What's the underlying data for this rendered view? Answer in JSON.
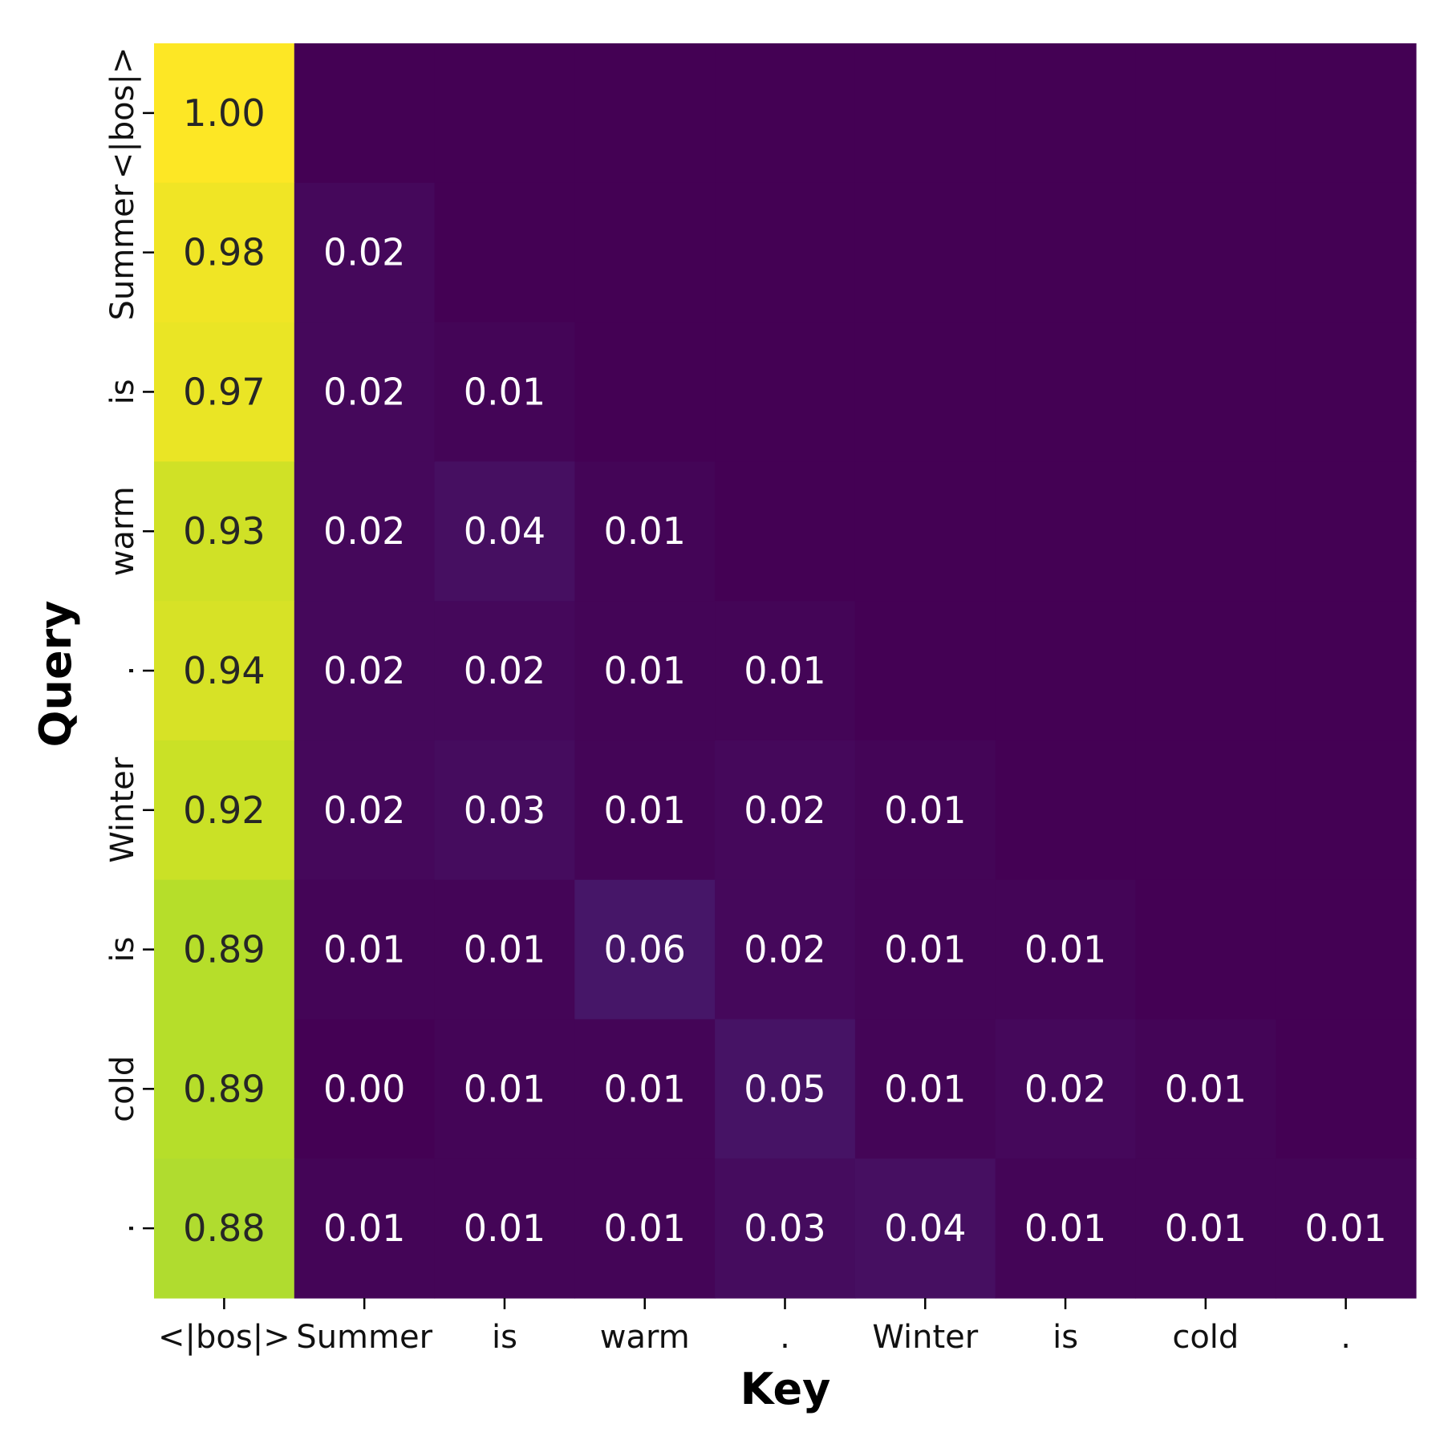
{
  "chart_data": {
    "type": "heatmap",
    "title": "",
    "xlabel": "Key",
    "ylabel": "Query",
    "x_categories": [
      "<|bos|>",
      "Summer",
      "is",
      "warm",
      ".",
      "Winter",
      "is",
      "cold",
      "."
    ],
    "y_categories": [
      "<|bos|>",
      "Summer",
      "is",
      "warm",
      ".",
      "Winter",
      "is",
      "cold",
      "."
    ],
    "colormap": "viridis",
    "value_range": [
      0,
      1
    ],
    "colorbar": false,
    "masked_upper_triangle": true,
    "values": [
      [
        1.0,
        null,
        null,
        null,
        null,
        null,
        null,
        null,
        null
      ],
      [
        0.98,
        0.02,
        null,
        null,
        null,
        null,
        null,
        null,
        null
      ],
      [
        0.97,
        0.02,
        0.01,
        null,
        null,
        null,
        null,
        null,
        null
      ],
      [
        0.93,
        0.02,
        0.04,
        0.01,
        null,
        null,
        null,
        null,
        null
      ],
      [
        0.94,
        0.02,
        0.02,
        0.01,
        0.01,
        null,
        null,
        null,
        null
      ],
      [
        0.92,
        0.02,
        0.03,
        0.01,
        0.02,
        0.01,
        null,
        null,
        null
      ],
      [
        0.89,
        0.01,
        0.01,
        0.06,
        0.02,
        0.01,
        0.01,
        null,
        null
      ],
      [
        0.89,
        0.0,
        0.01,
        0.01,
        0.05,
        0.01,
        0.02,
        0.01,
        null
      ],
      [
        0.88,
        0.01,
        0.01,
        0.01,
        0.03,
        0.04,
        0.01,
        0.01,
        0.01
      ]
    ],
    "cell_labels": [
      [
        "1.00",
        "",
        "",
        "",
        "",
        "",
        "",
        "",
        ""
      ],
      [
        "0.98",
        "0.02",
        "",
        "",
        "",
        "",
        "",
        "",
        ""
      ],
      [
        "0.97",
        "0.02",
        "0.01",
        "",
        "",
        "",
        "",
        "",
        ""
      ],
      [
        "0.93",
        "0.02",
        "0.04",
        "0.01",
        "",
        "",
        "",
        "",
        ""
      ],
      [
        "0.94",
        "0.02",
        "0.02",
        "0.01",
        "0.01",
        "",
        "",
        "",
        ""
      ],
      [
        "0.92",
        "0.02",
        "0.03",
        "0.01",
        "0.02",
        "0.01",
        "",
        "",
        ""
      ],
      [
        "0.89",
        "0.01",
        "0.01",
        "0.06",
        "0.02",
        "0.01",
        "0.01",
        "",
        ""
      ],
      [
        "0.89",
        "0.00",
        "0.01",
        "0.01",
        "0.05",
        "0.01",
        "0.02",
        "0.01",
        ""
      ],
      [
        "0.88",
        "0.01",
        "0.01",
        "0.01",
        "0.03",
        "0.04",
        "0.01",
        "0.01",
        "0.01"
      ]
    ],
    "colors": {
      "text_dark": "#262626",
      "text_light": "#ffffff",
      "background": "#ffffff"
    }
  }
}
